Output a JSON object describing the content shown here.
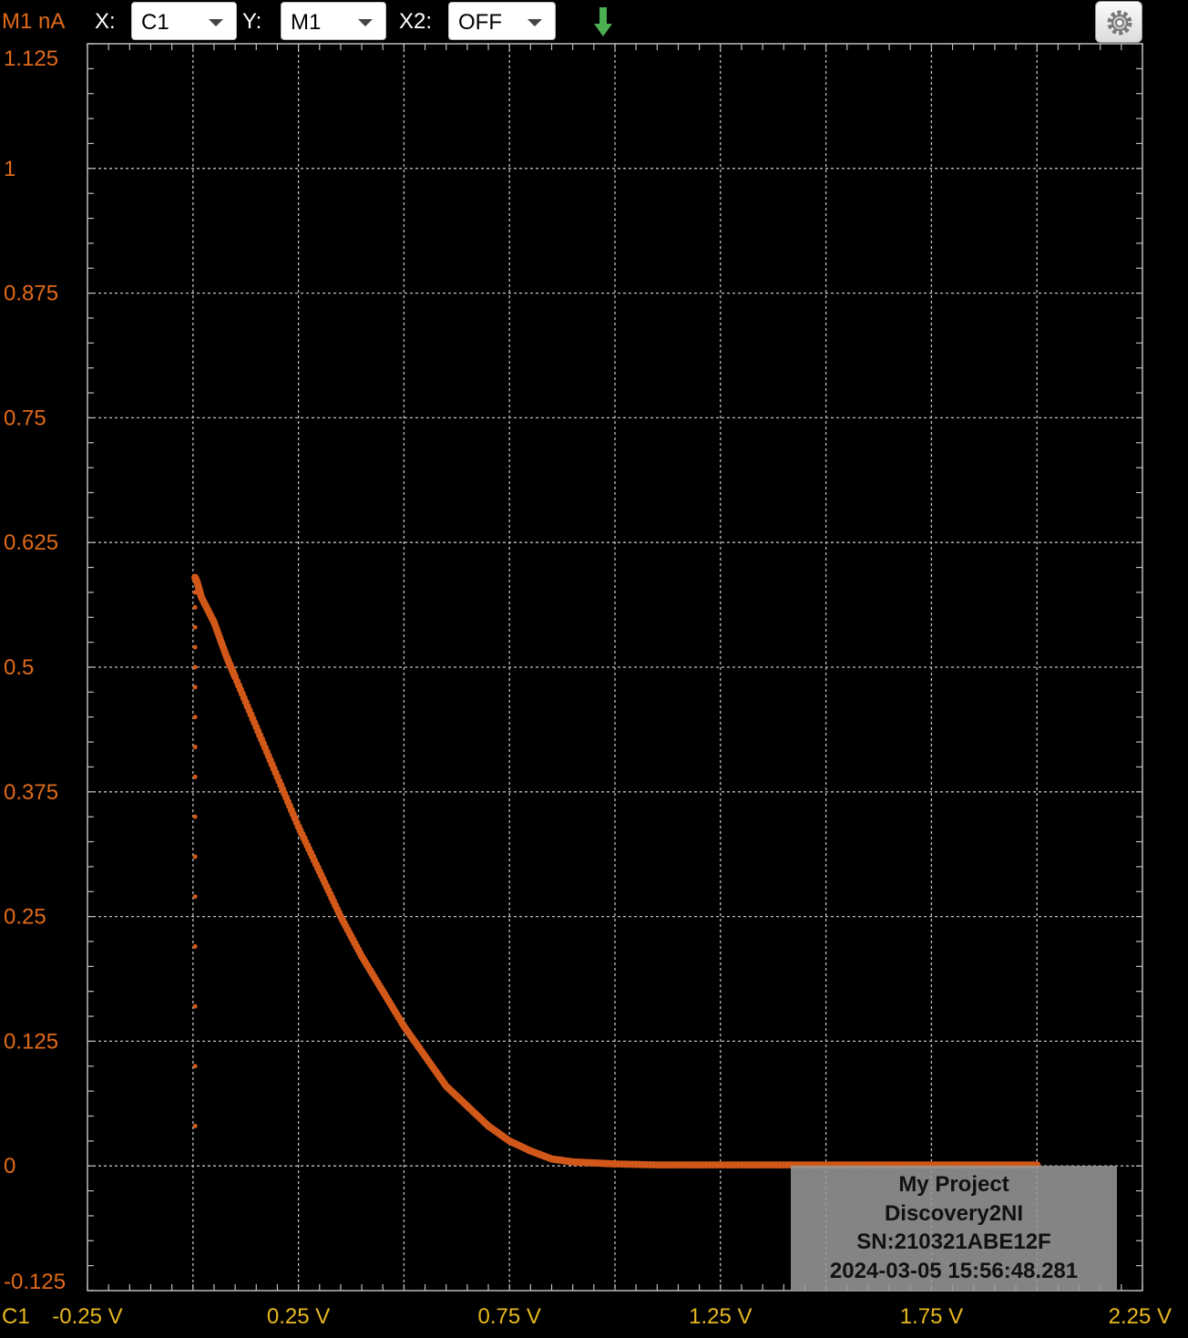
{
  "toolbar": {
    "y_unit": "M1 nA",
    "x_label": "X:",
    "x_value": "C1",
    "y_label": "Y:",
    "y_value": "M1",
    "x2_label": "X2:",
    "x2_value": "OFF",
    "download_icon": "download-arrow-icon",
    "settings_icon": "gear-icon"
  },
  "x_axis_channel": "C1",
  "info_box": {
    "project": "My Project",
    "device": "Discovery2NI",
    "serial": "SN:210321ABE12F",
    "timestamp": "2024-03-05 15:56:48.281"
  },
  "colors": {
    "trace": "#d2581a",
    "y_axis_text": "#e06a1a",
    "x_axis_text": "#e8b820",
    "grid": "#bdbdbd",
    "background": "#000000"
  },
  "chart_data": {
    "type": "scatter",
    "title": "",
    "xlabel": "",
    "ylabel": "M1 nA",
    "xlim": [
      -0.25,
      2.25
    ],
    "ylim": [
      -0.125,
      1.125
    ],
    "grid": true,
    "x_ticks": [
      "-0.25 V",
      "0.25 V",
      "0.75 V",
      "1.25 V",
      "1.75 V",
      "2.25 V"
    ],
    "y_ticks": [
      "1.125",
      "1",
      "0.875",
      "0.75",
      "0.625",
      "0.5",
      "0.375",
      "0.25",
      "0.125",
      "0",
      "-0.125"
    ],
    "series": [
      {
        "x": [
          0.005,
          0.01,
          0.02,
          0.05,
          0.08,
          0.1,
          0.15,
          0.2,
          0.25,
          0.3,
          0.35,
          0.4,
          0.45,
          0.5,
          0.55,
          0.6,
          0.65,
          0.7,
          0.75,
          0.8,
          0.85,
          0.9,
          0.95,
          1.0,
          1.1,
          1.2,
          1.3,
          1.4,
          1.5,
          1.6,
          1.7,
          1.8,
          1.9,
          2.0
        ],
        "y": [
          0.59,
          0.585,
          0.57,
          0.545,
          0.51,
          0.49,
          0.44,
          0.39,
          0.34,
          0.295,
          0.25,
          0.21,
          0.175,
          0.14,
          0.11,
          0.08,
          0.06,
          0.04,
          0.025,
          0.015,
          0.007,
          0.004,
          0.003,
          0.002,
          0.001,
          0.001,
          0.001,
          0.001,
          0.001,
          0.001,
          0.001,
          0.001,
          0.001,
          0.001
        ]
      },
      {
        "x": [
          0.005,
          0.005,
          0.005,
          0.005,
          0.005,
          0.005,
          0.005,
          0.005,
          0.005,
          0.005,
          0.005,
          0.005,
          0.005,
          0.005,
          0.005,
          0.005
        ],
        "y": [
          0.04,
          0.1,
          0.16,
          0.22,
          0.27,
          0.31,
          0.35,
          0.39,
          0.42,
          0.45,
          0.48,
          0.5,
          0.52,
          0.54,
          0.56,
          0.575
        ]
      }
    ]
  }
}
